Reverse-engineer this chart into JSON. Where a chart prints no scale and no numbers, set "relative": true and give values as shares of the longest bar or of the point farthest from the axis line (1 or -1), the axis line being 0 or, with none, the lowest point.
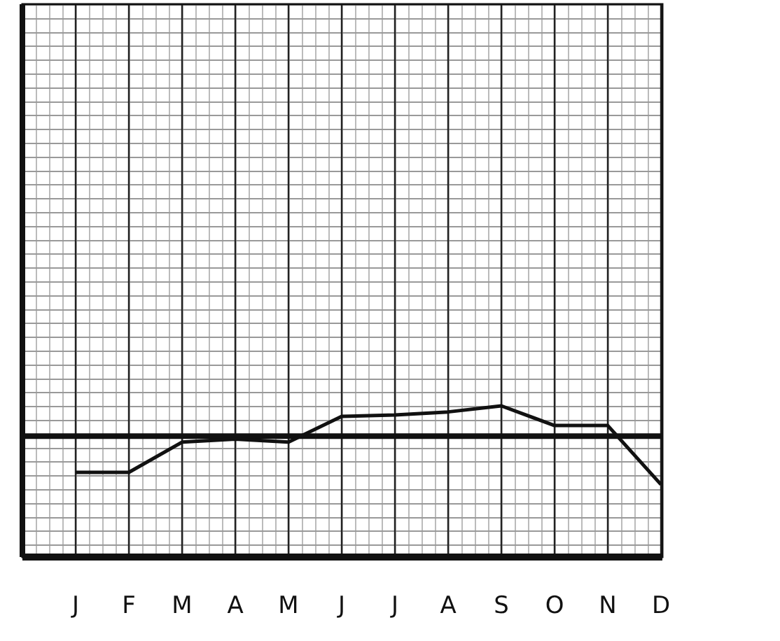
{
  "chart_data": {
    "type": "line",
    "relative": true,
    "categories": [
      "J",
      "F",
      "M",
      "A",
      "M",
      "J",
      "J",
      "A",
      "S",
      "O",
      "N",
      "D"
    ],
    "series": [
      {
        "color": "#111111",
        "values": [
          0.56,
          0.56,
          0.76,
          0.78,
          0.76,
          0.93,
          0.94,
          0.96,
          1,
          0.87,
          0.87,
          0.48
        ]
      }
    ],
    "ref_lines": [
      {
        "axis": "y",
        "value": 0.8,
        "color": "#111111"
      }
    ],
    "grid": "x",
    "marker": "none",
    "line_style": "solid"
  }
}
